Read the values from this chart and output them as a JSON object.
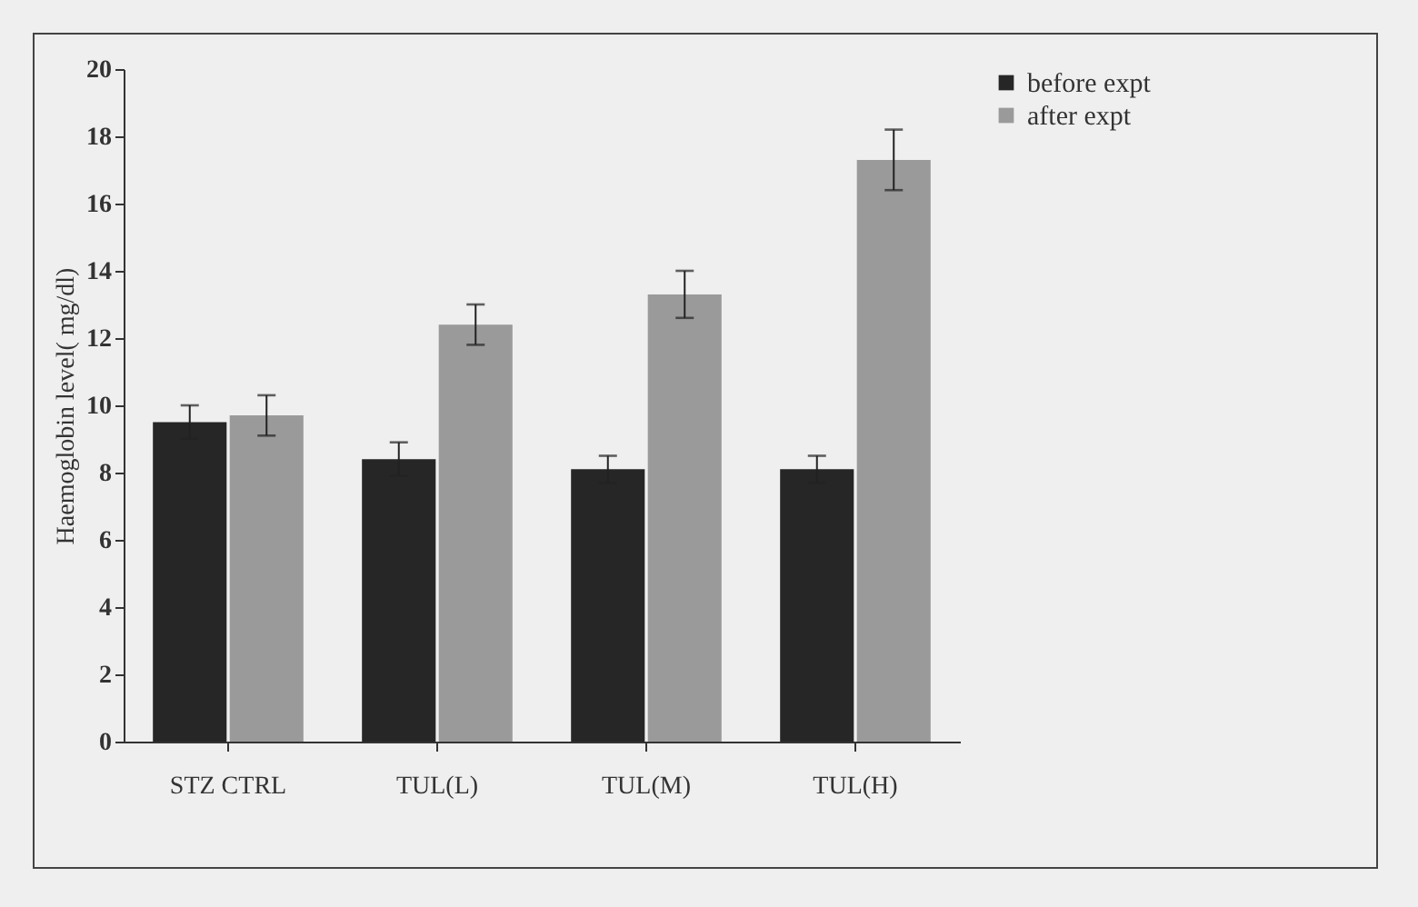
{
  "chart_data": {
    "type": "bar",
    "ylabel": "Haemoglobin level( mg/dl)",
    "categories": [
      "STZ CTRL",
      "TUL(L)",
      "TUL(M)",
      "TUL(H)"
    ],
    "series": [
      {
        "name": "before expt",
        "color": "#262626",
        "values": [
          9.5,
          8.4,
          8.1,
          8.1
        ],
        "errors": [
          0.5,
          0.5,
          0.4,
          0.4
        ]
      },
      {
        "name": "after expt",
        "color": "#9a9a9a",
        "values": [
          9.7,
          12.4,
          13.3,
          17.3
        ],
        "errors": [
          0.6,
          0.6,
          0.7,
          0.9
        ]
      }
    ],
    "ylim": [
      0,
      20
    ],
    "yticks": [
      0,
      2,
      4,
      6,
      8,
      10,
      12,
      14,
      16,
      18,
      20
    ],
    "grid": false,
    "legend": "right"
  }
}
